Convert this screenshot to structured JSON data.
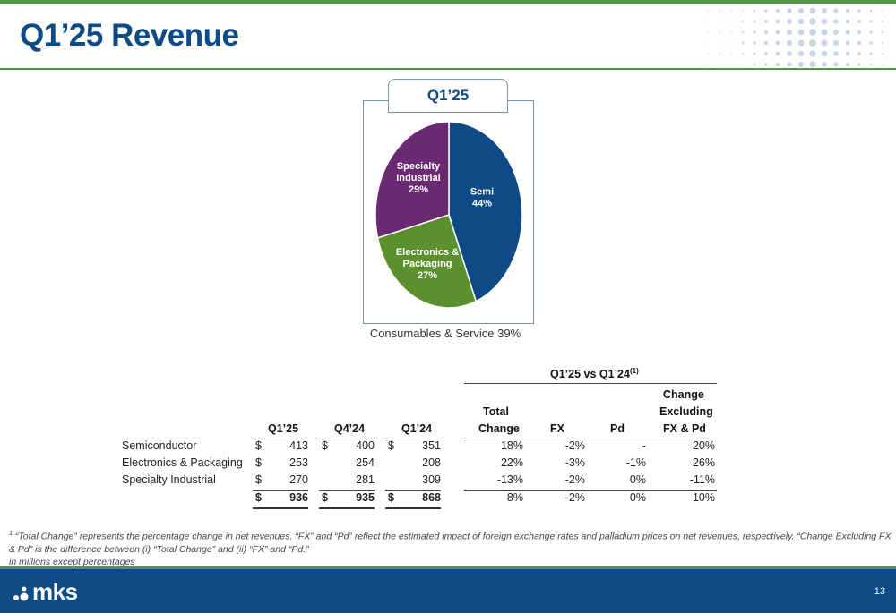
{
  "slide": {
    "title": "Q1’25 Revenue",
    "page_number": "13"
  },
  "pie": {
    "tab_label": "Q1’25",
    "caption": "Consumables & Service 39%",
    "slices": [
      {
        "label_lines": [
          "Semi",
          "44%"
        ],
        "value": 44,
        "color": "#0d4a86"
      },
      {
        "label_lines": [
          "Electronics &",
          "Packaging",
          "27%"
        ],
        "value": 27,
        "color": "#5c8f2e"
      },
      {
        "label_lines": [
          "Specialty",
          "Industrial",
          "29%"
        ],
        "value": 29,
        "color": "#6a2a72"
      }
    ]
  },
  "table": {
    "group_header": "Q1’25 vs Q1’24",
    "group_header_sup": "(1)",
    "col_headers": {
      "q125": "Q1’25",
      "q424": "Q4’24",
      "q124": "Q1’24",
      "total_change_line1": "Total",
      "total_change_line2": "Change",
      "fx": "FX",
      "pd": "Pd",
      "excl_line1": "Change",
      "excl_line2": "Excluding",
      "excl_line3": "FX & Pd"
    },
    "rows": [
      {
        "label": "Semiconductor",
        "q125_cur": "$",
        "q125": "413",
        "q424_cur": "$",
        "q424": "400",
        "q124_cur": "$",
        "q124": "351",
        "total_change": "18%",
        "fx": "-2%",
        "pd": "-",
        "excl": "20%"
      },
      {
        "label": "Electronics & Packaging",
        "q125_cur": "$",
        "q125": "253",
        "q424_cur": "",
        "q424": "254",
        "q124_cur": "",
        "q124": "208",
        "total_change": "22%",
        "fx": "-3%",
        "pd": "-1%",
        "excl": "26%"
      },
      {
        "label": "Specialty Industrial",
        "q125_cur": "$",
        "q125": "270",
        "q424_cur": "",
        "q424": "281",
        "q124_cur": "",
        "q124": "309",
        "total_change": "-13%",
        "fx": "-2%",
        "pd": "0%",
        "excl": "-11%"
      }
    ],
    "total_row": {
      "q125_cur": "$",
      "q125": "936",
      "q424_cur": "$",
      "q424": "935",
      "q124_cur": "$",
      "q124": "868",
      "total_change": "8%",
      "fx": "-2%",
      "pd": "0%",
      "excl": "10%"
    }
  },
  "footnotes": {
    "sup": "1",
    "line1": " “Total Change” represents the percentage change in net revenues. “FX” and “Pd” reflect the estimated impact of foreign exchange rates and palladium prices on net revenues, respectively. “Change Excluding FX & Pd” is the difference between (i) “Total Change” and (ii) “FX” and “Pd.”",
    "line2": "in millions except percentages"
  },
  "logo": {
    "text": "mks"
  },
  "colors": {
    "brand_blue": "#0d4a86",
    "brand_green": "#4e9a3e"
  }
}
